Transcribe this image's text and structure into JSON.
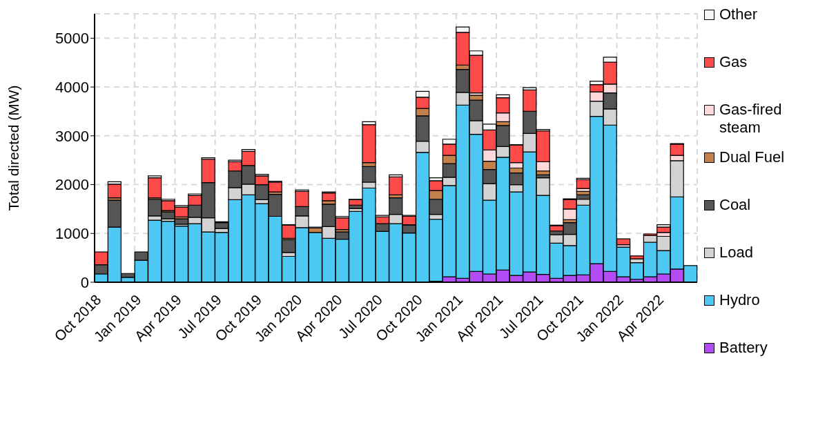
{
  "chart_data": {
    "type": "bar",
    "stacked": true,
    "ylabel": "Total directed (MW)",
    "legend": "right",
    "grid": true,
    "categories": [
      "Oct 2018",
      null,
      null,
      "Jan 2019",
      null,
      null,
      "Apr 2019",
      null,
      null,
      "Jul 2019",
      null,
      null,
      "Oct 2019",
      null,
      null,
      "Jan 2020",
      null,
      null,
      "Apr 2020",
      null,
      null,
      "Jul 2020",
      null,
      null,
      "Oct 2020",
      null,
      null,
      "Jan 2021",
      null,
      null,
      "Apr 2021",
      null,
      null,
      "Jul 2021",
      null,
      null,
      "Oct 2021",
      null,
      null,
      "Jan 2022",
      null,
      null,
      "Apr 2022",
      null,
      null
    ],
    "ylim": [
      0,
      5500
    ],
    "yticks": [
      0,
      1000,
      2000,
      3000,
      4000,
      5000
    ],
    "series": [
      {
        "name": "Battery",
        "color": "#b44cf5",
        "values": [
          0,
          0,
          0,
          0,
          0,
          0,
          0,
          0,
          0,
          0,
          0,
          0,
          0,
          0,
          0,
          0,
          0,
          0,
          0,
          0,
          0,
          0,
          0,
          0,
          0,
          20,
          110,
          80,
          220,
          170,
          250,
          140,
          210,
          160,
          80,
          140,
          150,
          380,
          220,
          110,
          60,
          110,
          170,
          270,
          0
        ]
      },
      {
        "name": "Hydro",
        "color": "#4dc8f2",
        "values": [
          170,
          1130,
          100,
          450,
          1270,
          1250,
          1150,
          1200,
          1030,
          1020,
          1690,
          1790,
          1610,
          1350,
          530,
          1120,
          1020,
          900,
          880,
          1450,
          1930,
          1040,
          1200,
          1010,
          2660,
          1270,
          1870,
          3550,
          2810,
          1510,
          2310,
          1710,
          2460,
          1620,
          720,
          610,
          1430,
          3020,
          3000,
          610,
          340,
          710,
          480,
          1480,
          340
        ]
      },
      {
        "name": "Load",
        "color": "#d3d3d3",
        "values": [
          0,
          0,
          0,
          0,
          90,
          50,
          40,
          130,
          290,
          80,
          250,
          220,
          80,
          0,
          80,
          240,
          0,
          240,
          0,
          60,
          120,
          0,
          190,
          0,
          230,
          100,
          170,
          260,
          280,
          340,
          220,
          150,
          380,
          360,
          170,
          230,
          120,
          310,
          330,
          0,
          80,
          140,
          290,
          740,
          0
        ]
      },
      {
        "name": "Coal",
        "color": "#555555",
        "values": [
          190,
          550,
          80,
          170,
          340,
          140,
          110,
          250,
          720,
          120,
          340,
          380,
          310,
          450,
          260,
          190,
          0,
          460,
          150,
          70,
          320,
          160,
          340,
          160,
          520,
          310,
          280,
          470,
          420,
          290,
          430,
          240,
          450,
          60,
          80,
          240,
          90,
          0,
          330,
          0,
          0,
          0,
          0,
          0,
          0
        ]
      },
      {
        "name": "Dual Fuel",
        "color": "#c4804a",
        "values": [
          0,
          50,
          0,
          0,
          30,
          30,
          40,
          0,
          0,
          0,
          0,
          0,
          null,
          50,
          30,
          0,
          90,
          70,
          50,
          0,
          80,
          0,
          60,
          10,
          150,
          180,
          170,
          90,
          100,
          170,
          80,
          100,
          0,
          80,
          null,
          60,
          70,
          0,
          0,
          0,
          0,
          0,
          0,
          0,
          0
        ]
      },
      {
        "name": "Gas-fired steam",
        "color": "#ffd9d9",
        "values": [
          0,
          0,
          0,
          0,
          0,
          0,
          0,
          0,
          0,
          0,
          0,
          0,
          0,
          0,
          0,
          0,
          0,
          0,
          0,
          0,
          0,
          0,
          0,
          0,
          0,
          0,
          0,
          0,
          50,
          230,
          180,
          110,
          0,
          190,
          0,
          220,
          60,
          190,
          180,
          50,
          0,
          0,
          80,
          110,
          0
        ]
      },
      {
        "name": "Gas",
        "color": "#ff4a4a",
        "values": [
          260,
          280,
          0,
          0,
          410,
          200,
          200,
          200,
          480,
          0,
          190,
          290,
          180,
          200,
          270,
          310,
          0,
          160,
          240,
          110,
          780,
          140,
          370,
          170,
          230,
          200,
          230,
          670,
          770,
          410,
          310,
          360,
          440,
          630,
          110,
          190,
          180,
          150,
          450,
          120,
          60,
          30,
          110,
          230,
          0
        ]
      },
      {
        "name": "Other",
        "color": "#f5f5f5",
        "values": [
          0,
          50,
          0,
          0,
          40,
          30,
          30,
          30,
          30,
          20,
          30,
          40,
          30,
          20,
          10,
          30,
          20,
          20,
          30,
          10,
          60,
          30,
          40,
          20,
          120,
          60,
          100,
          110,
          90,
          120,
          60,
          10,
          50,
          30,
          10,
          20,
          30,
          70,
          100,
          0,
          0,
          0,
          50,
          10,
          0
        ]
      }
    ]
  }
}
